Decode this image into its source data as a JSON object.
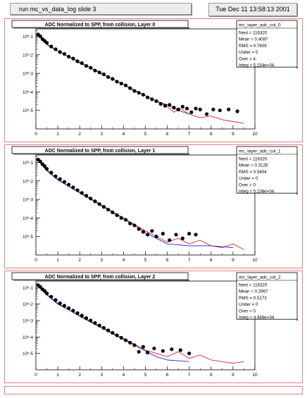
{
  "header": {
    "run_label": "run mc_vs_data_log slide 3",
    "timestamp": "Tue Dec 11 13:58:13 2001"
  },
  "colors": {
    "mc_hist": "#e02020",
    "data_hist": "#2020e0",
    "data_points": "#000000",
    "frame": "#e08080"
  },
  "chart_data": [
    {
      "type": "line",
      "title": "ADC Normalized to SPP, from collision, Layer 0",
      "xlim": [
        0,
        10
      ],
      "ylim_log10": [
        -6,
        -0.6
      ],
      "log_y": true,
      "xticks": [
        "0",
        "1",
        "2",
        "3",
        "4",
        "5",
        "6",
        "7",
        "8",
        "9",
        "10"
      ],
      "yticks": [
        "10^-1",
        "10^-2",
        "10^-3",
        "10^-4",
        "10^-5"
      ],
      "stats": {
        "name": "mc_layer_adc_col_0",
        "lines": [
          "Nent = 116320",
          "Mean = 0.4087",
          "RMS = 0.7609",
          "Under = 0",
          "Over = 4",
          "Integ = 5.154e+04"
        ]
      },
      "series": [
        {
          "kind": "mc_red",
          "x": [
            0.1,
            0.3,
            0.5,
            1,
            1.5,
            2,
            2.5,
            3,
            3.5,
            4,
            4.5,
            5,
            5.5,
            6,
            6.3,
            6.6,
            7,
            7.5,
            8,
            8.5,
            9,
            9.5
          ],
          "y": [
            -0.9,
            -1.2,
            -1.4,
            -1.8,
            -2.1,
            -2.4,
            -2.7,
            -3.0,
            -3.3,
            -3.6,
            -3.9,
            -4.2,
            -4.5,
            -4.8,
            -5.1,
            -4.9,
            -5.2,
            -5.4,
            -5.3,
            -5.5,
            -5.6,
            -5.7
          ]
        },
        {
          "kind": "data_blue",
          "x": [
            0.1,
            0.5,
            1,
            1.5,
            2,
            2.5,
            3,
            3.5,
            4,
            4.5,
            5,
            5.5,
            6,
            6.5,
            7
          ],
          "y": [
            -0.95,
            -1.45,
            -1.8,
            -2.1,
            -2.45,
            -2.7,
            -3.05,
            -3.3,
            -3.6,
            -3.95,
            -4.2,
            -4.5,
            -4.7,
            -5.0,
            -5.2
          ]
        },
        {
          "kind": "points",
          "x": [
            0.1,
            0.2,
            0.3,
            0.4,
            0.5,
            0.7,
            0.9,
            1.1,
            1.3,
            1.5,
            1.7,
            1.9,
            2.1,
            2.3,
            2.5,
            2.7,
            2.9,
            3.1,
            3.3,
            3.5,
            3.7,
            3.9,
            4.1,
            4.3,
            4.5,
            4.7,
            4.9,
            5.1,
            5.3,
            5.5,
            5.7,
            5.9,
            6.1,
            6.3,
            6.5,
            6.7,
            6.9,
            7.1,
            7.3,
            7.5,
            7.8,
            8.1,
            8.4,
            8.8,
            9.2
          ],
          "y": [
            -0.9,
            -1.0,
            -1.15,
            -1.25,
            -1.35,
            -1.55,
            -1.7,
            -1.85,
            -1.95,
            -2.1,
            -2.2,
            -2.35,
            -2.45,
            -2.6,
            -2.7,
            -2.85,
            -2.95,
            -3.05,
            -3.2,
            -3.3,
            -3.45,
            -3.55,
            -3.65,
            -3.8,
            -3.95,
            -4.05,
            -4.15,
            -4.3,
            -4.4,
            -4.5,
            -4.65,
            -4.75,
            -4.7,
            -4.85,
            -4.95,
            -4.8,
            -4.9,
            -5.1,
            -4.9,
            -4.95,
            -5.2,
            -4.95,
            -5.0,
            -4.95,
            -5.05
          ]
        }
      ]
    },
    {
      "type": "line",
      "title": "ADC Normalized to SPP, from collision, Layer 1",
      "xlim": [
        0,
        10
      ],
      "ylim_log10": [
        -6,
        -0.6
      ],
      "log_y": true,
      "xticks": [
        "0",
        "1",
        "2",
        "3",
        "4",
        "5",
        "6",
        "7",
        "8",
        "9",
        "10"
      ],
      "yticks": [
        "10^-1",
        "10^-2",
        "10^-3",
        "10^-4",
        "10^-5"
      ],
      "stats": {
        "name": "mc_layer_adc_col_1",
        "lines": [
          "Nent = 116320",
          "Mean = 0.3126",
          "RMS = 0.5404",
          "Under = 0",
          "Over = 0",
          "Integ = 5.108e+04"
        ]
      },
      "series": [
        {
          "kind": "mc_red",
          "x": [
            0.1,
            0.3,
            0.5,
            1,
            1.5,
            2,
            2.5,
            3,
            3.5,
            4,
            4.5,
            5,
            5.5,
            6,
            6.5,
            7,
            7.5,
            8,
            8.5,
            9,
            9.5
          ],
          "y": [
            -0.85,
            -1.15,
            -1.4,
            -1.9,
            -2.3,
            -2.6,
            -2.95,
            -3.3,
            -3.65,
            -4.0,
            -4.35,
            -4.7,
            -5.0,
            -5.3,
            -5.1,
            -5.4,
            -5.2,
            -5.5,
            -5.6,
            -5.4,
            -5.7
          ]
        },
        {
          "kind": "data_blue",
          "x": [
            0.1,
            0.5,
            1,
            1.5,
            2,
            2.5,
            3,
            3.5,
            4,
            4.5,
            5,
            5.5,
            6,
            7,
            8,
            9
          ],
          "y": [
            -0.9,
            -1.45,
            -1.95,
            -2.3,
            -2.65,
            -3.0,
            -3.35,
            -3.7,
            -4.05,
            -4.4,
            -4.8,
            -5.1,
            -5.4,
            -5.5,
            -5.5,
            -5.6
          ]
        },
        {
          "kind": "points",
          "x": [
            0.1,
            0.2,
            0.3,
            0.4,
            0.5,
            0.7,
            0.9,
            1.1,
            1.3,
            1.5,
            1.7,
            1.9,
            2.1,
            2.3,
            2.5,
            2.7,
            2.9,
            3.1,
            3.3,
            3.5,
            3.7,
            3.9,
            4.1,
            4.3,
            4.5,
            4.7,
            4.9,
            5.1,
            5.3,
            5.5,
            5.8,
            6.1,
            6.4,
            6.7,
            7.0,
            7.3
          ],
          "y": [
            -0.85,
            -0.95,
            -1.1,
            -1.2,
            -1.35,
            -1.55,
            -1.75,
            -1.9,
            -2.05,
            -2.2,
            -2.35,
            -2.5,
            -2.65,
            -2.8,
            -2.95,
            -3.1,
            -3.25,
            -3.4,
            -3.55,
            -3.7,
            -3.85,
            -4.0,
            -4.1,
            -4.3,
            -4.4,
            -4.6,
            -4.75,
            -4.9,
            -4.7,
            -5.0,
            -4.85,
            -5.2,
            -4.9,
            -5.1,
            -4.85,
            -4.9
          ]
        }
      ]
    },
    {
      "type": "line",
      "title": "ADC Normalized to SPP, from collision, Layer 2",
      "xlim": [
        0,
        10
      ],
      "ylim_log10": [
        -6,
        -0.6
      ],
      "log_y": true,
      "xticks": [
        "0",
        "1",
        "2",
        "3",
        "4",
        "5",
        "6",
        "7",
        "8",
        "9",
        "10"
      ],
      "yticks": [
        "10^-1",
        "10^-2",
        "10^-3",
        "10^-4",
        "10^-5"
      ],
      "stats": {
        "name": "mc_layer_adc_col_2",
        "lines": [
          "Nent = 116320",
          "Mean = 0.2967",
          "RMS = 0.5173",
          "Under = 0",
          "Over = 0",
          "Integ = 4.946e+04"
        ]
      },
      "series": [
        {
          "kind": "mc_red",
          "x": [
            0.1,
            0.3,
            0.5,
            1,
            1.5,
            2,
            2.5,
            3,
            3.5,
            4,
            4.5,
            5,
            5.5,
            6,
            6.5,
            7,
            7.5,
            8,
            8.5,
            9,
            9.5
          ],
          "y": [
            -0.85,
            -1.15,
            -1.4,
            -1.95,
            -2.35,
            -2.7,
            -3.05,
            -3.4,
            -3.75,
            -4.1,
            -4.45,
            -4.8,
            -5.0,
            -5.2,
            -4.9,
            -5.3,
            -5.1,
            -5.4,
            -5.5,
            -5.6,
            -5.5
          ]
        },
        {
          "kind": "data_blue",
          "x": [
            0.1,
            0.5,
            1,
            1.5,
            2,
            2.5,
            3,
            3.5,
            4,
            4.5,
            5,
            5.5,
            6,
            7
          ],
          "y": [
            -0.9,
            -1.45,
            -2.0,
            -2.35,
            -2.75,
            -3.1,
            -3.45,
            -3.8,
            -4.15,
            -4.5,
            -4.85,
            -5.2,
            -5.4,
            -5.5
          ]
        },
        {
          "kind": "points",
          "x": [
            0.1,
            0.2,
            0.3,
            0.4,
            0.5,
            0.7,
            0.9,
            1.1,
            1.3,
            1.5,
            1.7,
            1.9,
            2.1,
            2.3,
            2.5,
            2.7,
            2.9,
            3.1,
            3.3,
            3.5,
            3.7,
            3.9,
            4.1,
            4.3,
            4.5,
            4.7,
            4.9,
            5.1,
            5.4,
            5.8,
            6.2,
            6.6,
            7.0
          ],
          "y": [
            -0.85,
            -0.95,
            -1.1,
            -1.2,
            -1.35,
            -1.55,
            -1.75,
            -1.95,
            -2.1,
            -2.25,
            -2.4,
            -2.55,
            -2.7,
            -2.85,
            -3.0,
            -3.15,
            -3.3,
            -3.45,
            -3.6,
            -3.75,
            -3.9,
            -4.05,
            -4.2,
            -4.35,
            -4.5,
            -4.9,
            -4.6,
            -4.95,
            -4.7,
            -4.85,
            -4.75,
            -4.8,
            -5.0
          ]
        }
      ]
    }
  ]
}
